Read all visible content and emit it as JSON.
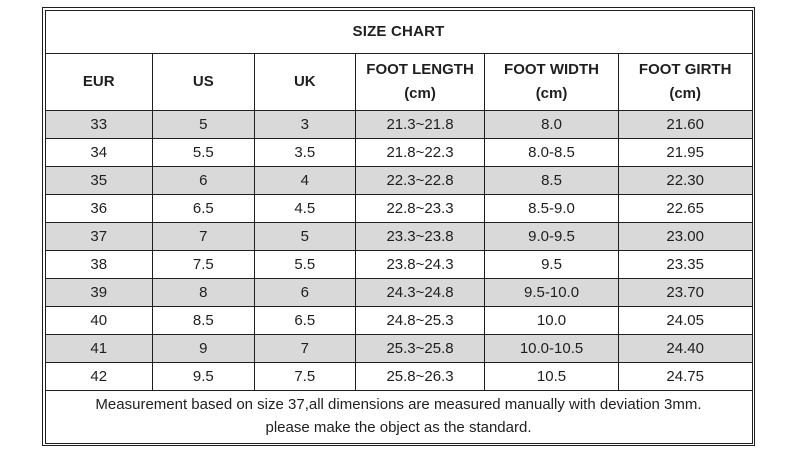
{
  "title": "SIZE CHART",
  "colors": {
    "stripe": "#d9d9d9",
    "border": "#1f1f1f",
    "background": "#ffffff"
  },
  "table": {
    "headers": [
      {
        "label": "EUR",
        "unit": ""
      },
      {
        "label": "US",
        "unit": ""
      },
      {
        "label": "UK",
        "unit": ""
      },
      {
        "label": "FOOT LENGTH",
        "unit": "(cm)"
      },
      {
        "label": "FOOT WIDTH",
        "unit": "(cm)"
      },
      {
        "label": "FOOT GIRTH",
        "unit": "(cm)"
      }
    ],
    "rows": [
      [
        "33",
        "5",
        "3",
        "21.3~21.8",
        "8.0",
        "21.60"
      ],
      [
        "34",
        "5.5",
        "3.5",
        "21.8~22.3",
        "8.0-8.5",
        "21.95"
      ],
      [
        "35",
        "6",
        "4",
        "22.3~22.8",
        "8.5",
        "22.30"
      ],
      [
        "36",
        "6.5",
        "4.5",
        "22.8~23.3",
        "8.5-9.0",
        "22.65"
      ],
      [
        "37",
        "7",
        "5",
        "23.3~23.8",
        "9.0-9.5",
        "23.00"
      ],
      [
        "38",
        "7.5",
        "5.5",
        "23.8~24.3",
        "9.5",
        "23.35"
      ],
      [
        "39",
        "8",
        "6",
        "24.3~24.8",
        "9.5-10.0",
        "23.70"
      ],
      [
        "40",
        "8.5",
        "6.5",
        "24.8~25.3",
        "10.0",
        "24.05"
      ],
      [
        "41",
        "9",
        "7",
        "25.3~25.8",
        "10.0-10.5",
        "24.40"
      ],
      [
        "42",
        "9.5",
        "7.5",
        "25.8~26.3",
        "10.5",
        "24.75"
      ]
    ]
  },
  "footer": {
    "line1": "Measurement based on size 37,all dimensions are measured manually with deviation 3mm.",
    "line2": "please make the object as the standard."
  },
  "chart_data": {
    "type": "table",
    "title": "SIZE CHART",
    "columns": [
      "EUR",
      "US",
      "UK",
      "FOOT LENGTH (cm)",
      "FOOT WIDTH (cm)",
      "FOOT GIRTH (cm)"
    ],
    "rows": [
      [
        "33",
        "5",
        "3",
        "21.3~21.8",
        "8.0",
        "21.60"
      ],
      [
        "34",
        "5.5",
        "3.5",
        "21.8~22.3",
        "8.0-8.5",
        "21.95"
      ],
      [
        "35",
        "6",
        "4",
        "22.3~22.8",
        "8.5",
        "22.30"
      ],
      [
        "36",
        "6.5",
        "4.5",
        "22.8~23.3",
        "8.5-9.0",
        "22.65"
      ],
      [
        "37",
        "7",
        "5",
        "23.3~23.8",
        "9.0-9.5",
        "23.00"
      ],
      [
        "38",
        "7.5",
        "5.5",
        "23.8~24.3",
        "9.5",
        "23.35"
      ],
      [
        "39",
        "8",
        "6",
        "24.3~24.8",
        "9.5-10.0",
        "23.70"
      ],
      [
        "40",
        "8.5",
        "6.5",
        "24.8~25.3",
        "10.0",
        "24.05"
      ],
      [
        "41",
        "9",
        "7",
        "25.3~25.8",
        "10.0-10.5",
        "24.40"
      ],
      [
        "42",
        "9.5",
        "7.5",
        "25.8~26.3",
        "10.5",
        "24.75"
      ]
    ],
    "notes": [
      "Measurement based on size 37,all dimensions are measured manually with deviation 3mm.",
      "please make the object as the standard."
    ],
    "layout": {
      "striped_rows": "odd rows gray #d9d9d9",
      "outer_border": "double",
      "grid": true
    }
  }
}
